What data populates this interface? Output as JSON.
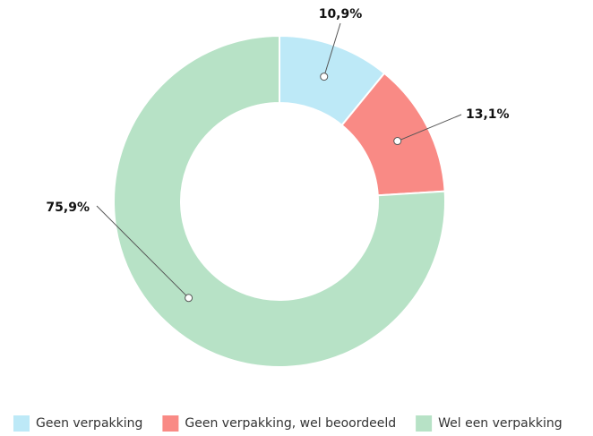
{
  "chart_data": {
    "type": "donut",
    "categories": [
      "Geen verpakking",
      "Geen verpakking, wel beoordeeld",
      "Wel een verpakking"
    ],
    "values": [
      10.9,
      13.1,
      75.9
    ],
    "value_labels": [
      "10,9%",
      "13,1%",
      "75,9%"
    ],
    "colors": [
      "#bde9f7",
      "#f98a85",
      "#b7e2c6"
    ],
    "legend": "bottom"
  }
}
